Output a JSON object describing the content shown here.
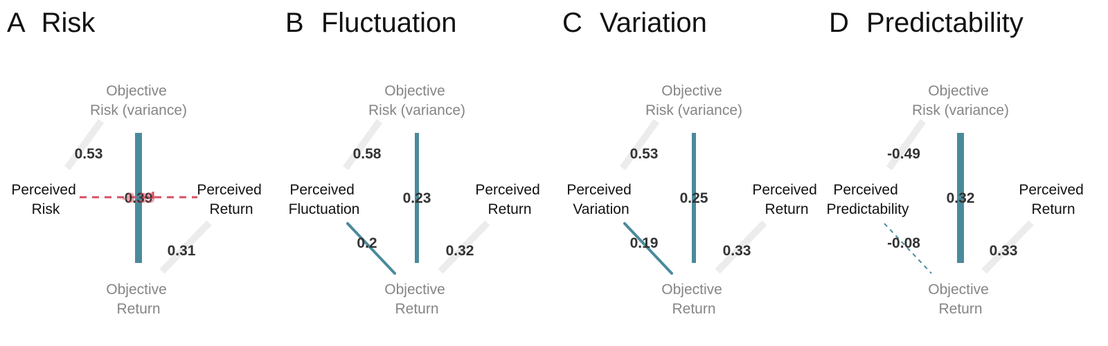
{
  "colors": {
    "positive": "#4a8a9c",
    "negative": "#d94f63",
    "faint": "#ececec",
    "objective_text": "#858585",
    "perceived_text": "#111111",
    "edge_label": "#333333"
  },
  "panels": [
    {
      "letter": "A",
      "name": "Risk",
      "node_objective_risk": [
        "Objective",
        "Risk (variance)"
      ],
      "node_objective_return": [
        "Objective",
        "Return"
      ],
      "node_perceived_left": [
        "Perceived",
        "Risk"
      ],
      "node_perceived_right": [
        "Perceived",
        "Return"
      ],
      "edges": [
        {
          "path": "obj_risk-perc_left",
          "value": "0.53",
          "style": "faint"
        },
        {
          "path": "obj_risk-obj_return",
          "value": "0.39",
          "style": "thick"
        },
        {
          "path": "obj_return-perc_right",
          "value": "0.31",
          "style": "faint"
        },
        {
          "path": "perc_left-perc_right",
          "value": "-0.39",
          "style": "negative-dashed"
        }
      ]
    },
    {
      "letter": "B",
      "name": "Fluctuation",
      "node_objective_risk": [
        "Objective",
        "Risk (variance)"
      ],
      "node_objective_return": [
        "Objective",
        "Return"
      ],
      "node_perceived_left": [
        "Perceived",
        "Fluctuation"
      ],
      "node_perceived_right": [
        "Perceived",
        "Return"
      ],
      "edges": [
        {
          "path": "obj_risk-perc_left",
          "value": "0.58",
          "style": "faint"
        },
        {
          "path": "obj_risk-obj_return",
          "value": "0.23",
          "style": "medium"
        },
        {
          "path": "perc_left-obj_return",
          "value": "0.2",
          "style": "thin"
        },
        {
          "path": "obj_return-perc_right",
          "value": "0.32",
          "style": "faint"
        }
      ]
    },
    {
      "letter": "C",
      "name": "Variation",
      "node_objective_risk": [
        "Objective",
        "Risk (variance)"
      ],
      "node_objective_return": [
        "Objective",
        "Return"
      ],
      "node_perceived_left": [
        "Perceived",
        "Variation"
      ],
      "node_perceived_right": [
        "Perceived",
        "Return"
      ],
      "edges": [
        {
          "path": "obj_risk-perc_left",
          "value": "0.53",
          "style": "faint"
        },
        {
          "path": "obj_risk-obj_return",
          "value": "0.25",
          "style": "medium"
        },
        {
          "path": "perc_left-obj_return",
          "value": "0.19",
          "style": "thin"
        },
        {
          "path": "obj_return-perc_right",
          "value": "0.33",
          "style": "faint"
        }
      ]
    },
    {
      "letter": "D",
      "name": "Predictability",
      "node_objective_risk": [
        "Objective",
        "Risk (variance)"
      ],
      "node_objective_return": [
        "Objective",
        "Return"
      ],
      "node_perceived_left": [
        "Perceived",
        "Predictability"
      ],
      "node_perceived_right": [
        "Perceived",
        "Return"
      ],
      "edges": [
        {
          "path": "obj_risk-perc_left",
          "value": "-0.49",
          "style": "faint"
        },
        {
          "path": "obj_risk-obj_return",
          "value": "0.32",
          "style": "thick"
        },
        {
          "path": "perc_left-obj_return",
          "value": "-0.08",
          "style": "dashed-thin"
        },
        {
          "path": "obj_return-perc_right",
          "value": "0.33",
          "style": "faint"
        }
      ]
    }
  ]
}
